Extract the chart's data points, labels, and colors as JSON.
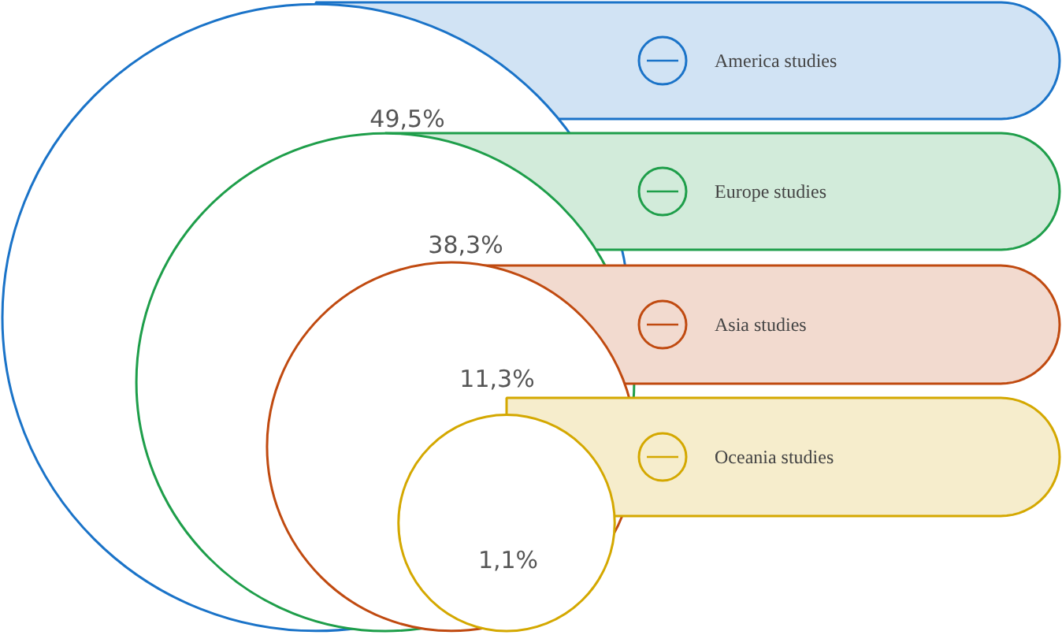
{
  "chart_data": {
    "type": "other",
    "categories": [
      "America studies",
      "Europe studies",
      "Asia studies",
      "Oceania studies"
    ],
    "values": [
      49.5,
      38.3,
      11.3,
      1.1
    ],
    "value_labels": [
      "49,5%",
      "38,3%",
      "11,3%",
      "1,1%"
    ],
    "colors": [
      "#1a73c8",
      "#1e9e4a",
      "#c04a10",
      "#d4a800"
    ]
  }
}
